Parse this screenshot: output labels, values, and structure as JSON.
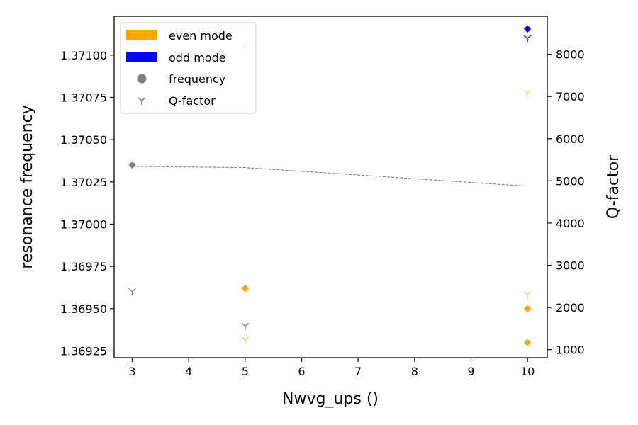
{
  "chart_data": {
    "type": "scatter",
    "xlabel": "Nwvg_ups ()",
    "ylabel_left": "resonance frequency",
    "ylabel_right": "Q-factor",
    "xlim": [
      2.68,
      10.35
    ],
    "ylim_left": [
      1.36921,
      1.37123
    ],
    "ylim_right": [
      810,
      8900
    ],
    "x_ticks": [
      3,
      4,
      5,
      6,
      7,
      8,
      9,
      10
    ],
    "x_tick_labels": [
      "3",
      "4",
      "5",
      "6",
      "7",
      "8",
      "9",
      "10"
    ],
    "yleft_ticks": [
      1.36925,
      1.3695,
      1.36975,
      1.37,
      1.37025,
      1.3705,
      1.37075,
      1.371
    ],
    "yleft_tick_labels": [
      "1.36925",
      "1.36950",
      "1.36975",
      "1.37000",
      "1.37025",
      "1.37050",
      "1.37075",
      "1.37100"
    ],
    "yright_ticks": [
      1000,
      2000,
      3000,
      4000,
      5000,
      6000,
      7000,
      8000
    ],
    "yright_tick_labels": [
      "1000",
      "2000",
      "3000",
      "4000",
      "5000",
      "6000",
      "7000",
      "8000"
    ],
    "legend": {
      "placement": "top-left",
      "entries": [
        {
          "label": "even mode",
          "kind": "patch",
          "color": "#ffa500"
        },
        {
          "label": "odd mode",
          "kind": "patch",
          "color": "#0000ff"
        },
        {
          "label": "frequency",
          "kind": "circle",
          "color": "#808080"
        },
        {
          "label": "Q-factor",
          "kind": "tri",
          "color": "#808080"
        }
      ]
    },
    "trend_line": {
      "color": "#808080",
      "x": [
        3,
        5,
        10
      ],
      "y": [
        1.370342,
        1.370335,
        1.370225
      ]
    },
    "series": [
      {
        "mode": "single",
        "color": "#808080",
        "frequency": [
          {
            "x": 3,
            "y": 1.37035
          }
        ],
        "q_factor": [
          {
            "x": 3,
            "y": 2380,
            "alpha": 0.9
          }
        ]
      },
      {
        "mode": "even",
        "color": "#ffa500",
        "frequency": [
          {
            "x": 5,
            "y": 1.36962
          },
          {
            "x": 10,
            "y": 1.3695
          },
          {
            "x": 10,
            "y": 1.3693
          }
        ],
        "q_factor": [
          {
            "x": 5,
            "y": 1230,
            "alpha": 0.6
          },
          {
            "x": 10,
            "y": 7080,
            "alpha": 0.5
          },
          {
            "x": 10,
            "y": 2310,
            "alpha": 0.5
          }
        ]
      },
      {
        "mode": "odd",
        "color": "#0000ff",
        "frequency": [
          {
            "x": 5,
            "y": 1.37105,
            "alpha": 0.18
          },
          {
            "x": 10,
            "y": 1.371155
          }
        ],
        "q_factor": [
          {
            "x": 5,
            "y": 1560,
            "alpha": 0.55
          },
          {
            "x": 10,
            "y": 8380,
            "alpha": 0.8
          }
        ]
      }
    ]
  }
}
